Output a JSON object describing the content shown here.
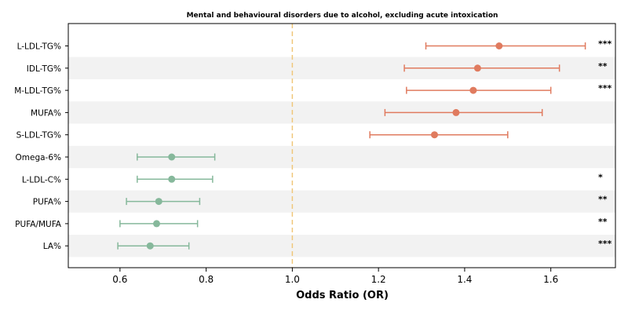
{
  "chart_data": {
    "type": "forest",
    "title": "Mental and behavioural disorders due to alcohol, excluding acute intoxication",
    "xlabel": "Odds Ratio (OR)",
    "xlim": [
      0.48,
      1.75
    ],
    "xticks": [
      0.6,
      0.8,
      1.0,
      1.2,
      1.4,
      1.6
    ],
    "xtick_labels": [
      "0.6",
      "0.8",
      "1.0",
      "1.2",
      "1.4",
      "1.6"
    ],
    "reference_line": 1.0,
    "colors": {
      "increased": "#e07b5f",
      "decreased": "#86b89b",
      "reference": "#f0c77a",
      "band": "#f2f2f2"
    },
    "rows": [
      {
        "label": "L-LDL-TG%",
        "or": 1.48,
        "lo": 1.31,
        "hi": 1.68,
        "sig": "***",
        "dir": "increased"
      },
      {
        "label": "IDL-TG%",
        "or": 1.43,
        "lo": 1.26,
        "hi": 1.62,
        "sig": "**",
        "dir": "increased"
      },
      {
        "label": "M-LDL-TG%",
        "or": 1.42,
        "lo": 1.265,
        "hi": 1.6,
        "sig": "***",
        "dir": "increased"
      },
      {
        "label": "MUFA%",
        "or": 1.38,
        "lo": 1.215,
        "hi": 1.58,
        "sig": "",
        "dir": "increased"
      },
      {
        "label": "S-LDL-TG%",
        "or": 1.33,
        "lo": 1.18,
        "hi": 1.5,
        "sig": "",
        "dir": "increased"
      },
      {
        "label": "Omega-6%",
        "or": 0.72,
        "lo": 0.64,
        "hi": 0.82,
        "sig": "",
        "dir": "decreased"
      },
      {
        "label": "L-LDL-C%",
        "or": 0.72,
        "lo": 0.64,
        "hi": 0.815,
        "sig": "*",
        "dir": "decreased"
      },
      {
        "label": "PUFA%",
        "or": 0.69,
        "lo": 0.615,
        "hi": 0.785,
        "sig": "**",
        "dir": "decreased"
      },
      {
        "label": "PUFA/MUFA",
        "or": 0.685,
        "lo": 0.6,
        "hi": 0.78,
        "sig": "**",
        "dir": "decreased"
      },
      {
        "label": "LA%",
        "or": 0.67,
        "lo": 0.595,
        "hi": 0.76,
        "sig": "***",
        "dir": "decreased"
      }
    ]
  }
}
